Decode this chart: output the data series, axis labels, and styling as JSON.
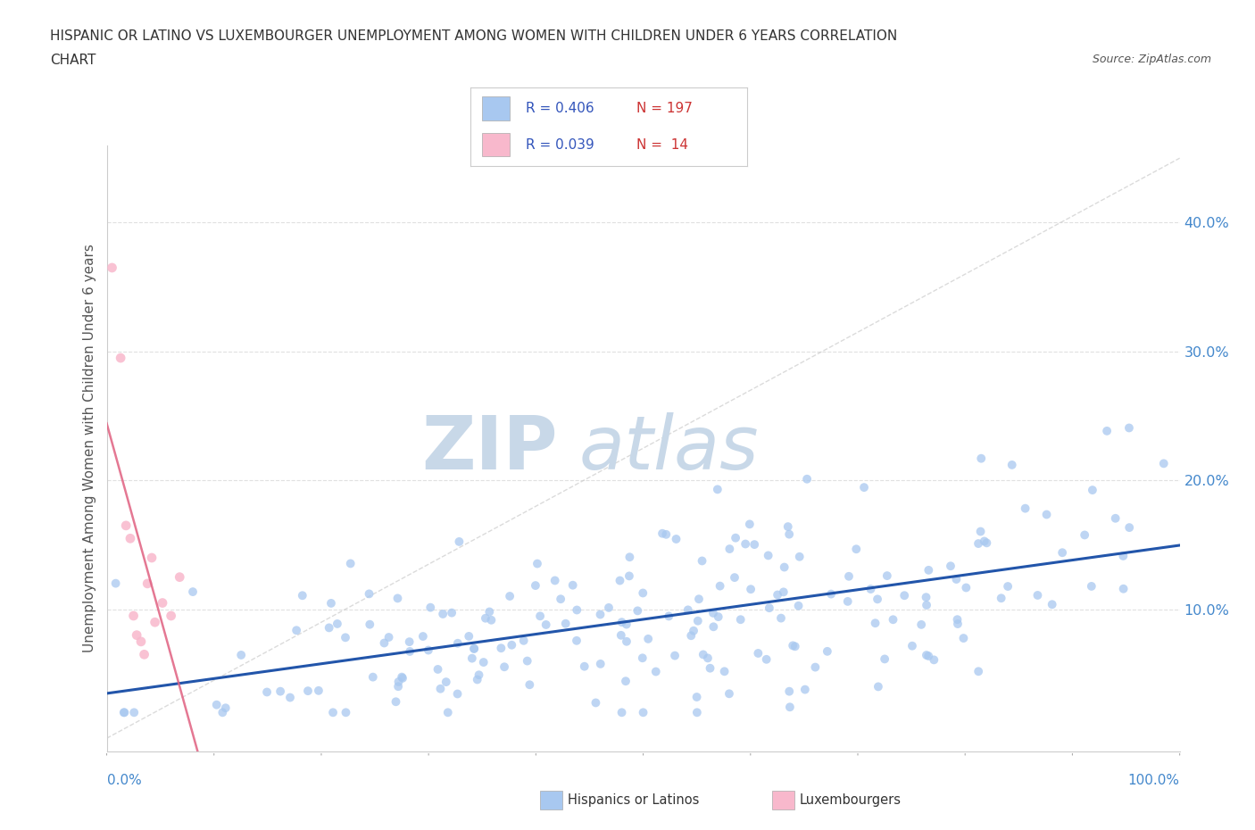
{
  "title_line1": "HISPANIC OR LATINO VS LUXEMBOURGER UNEMPLOYMENT AMONG WOMEN WITH CHILDREN UNDER 6 YEARS CORRELATION",
  "title_line2": "CHART",
  "source_text": "Source: ZipAtlas.com",
  "ylabel": "Unemployment Among Women with Children Under 6 years",
  "hispanic_color": "#a8c8f0",
  "hispanic_edge_color": "#7aaad0",
  "luxembourger_color": "#f8b8cc",
  "luxembourger_edge_color": "#e888a8",
  "regression_blue_color": "#2255aa",
  "regression_pink_color": "#e06080",
  "diagonal_color": "#cccccc",
  "watermark_zip_color": "#c8d8e8",
  "watermark_atlas_color": "#c8d8e8",
  "background_color": "#ffffff",
  "grid_color": "#e0e0e0",
  "xlim": [
    0.0,
    1.0
  ],
  "ylim": [
    -0.01,
    0.46
  ],
  "ytick_values": [
    0.1,
    0.2,
    0.3,
    0.4
  ],
  "ytick_labels": [
    "10.0%",
    "20.0%",
    "30.0%",
    "40.0%"
  ],
  "legend_r1": "R = 0.406",
  "legend_n1": "N = 197",
  "legend_r2": "R = 0.039",
  "legend_n2": "N =  14",
  "legend_color_r": "#3355bb",
  "legend_color_n": "#cc3333",
  "title_color": "#333333",
  "source_color": "#555555",
  "tick_label_color": "#4488cc",
  "axis_label_color": "#555555"
}
